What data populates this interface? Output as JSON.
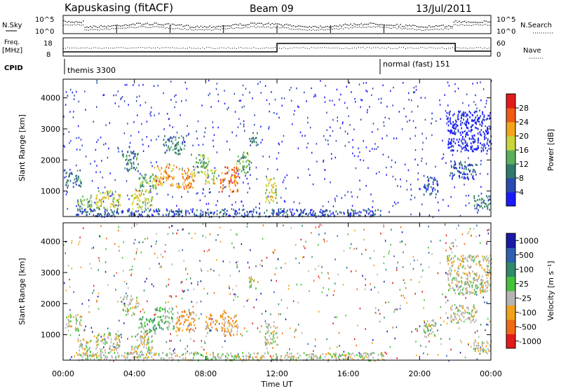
{
  "header": {
    "station": "Kapuskasing (fitACF)",
    "beam": "Beam 09",
    "date": "13/Jul/2011"
  },
  "top_panels": {
    "nsky_label": "N.Sky",
    "nsearch_label": "N.Search",
    "noise_ticks": [
      "10^5",
      "10^0"
    ],
    "freq_label_1": "Freq.",
    "freq_label_2": "[MHz]",
    "freq_ticks": [
      "18",
      "8"
    ],
    "nave_label": "Nave",
    "nave_ticks": [
      "60",
      "0"
    ],
    "cpid_label": "CPID",
    "cpid_segments": [
      {
        "label": "themis 3300",
        "start_hour": 0,
        "end_hour": 18
      },
      {
        "label": "normal (fast) 151",
        "start_hour": 18,
        "end_hour": 24
      }
    ]
  },
  "x_axis": {
    "label": "Time UT",
    "ticks": [
      "00:00",
      "04:00",
      "08:00",
      "12:00",
      "16:00",
      "20:00",
      "00:00"
    ]
  },
  "chart_data": [
    {
      "type": "heatmap",
      "name": "Power",
      "ylabel": "Slant Range [km]",
      "xlabel": "Time UT",
      "yticks": [
        1000,
        2000,
        3000,
        4000
      ],
      "ylim": [
        180,
        4600
      ],
      "xlim_hours": [
        0,
        24
      ],
      "colorbar": {
        "label": "Power [dB]",
        "ticks": [
          "4",
          "8",
          "12",
          "16",
          "20",
          "24",
          "28"
        ],
        "colors": [
          "#1a1aff",
          "#2a4bb0",
          "#2f7a6a",
          "#5bb05b",
          "#c8d63a",
          "#f2a51a",
          "#f05a14",
          "#e41a1a"
        ]
      },
      "regions": [
        {
          "t0": 0.1,
          "t1": 1.0,
          "r0": 1150,
          "r1": 1700,
          "level": 2
        },
        {
          "t0": 0.7,
          "t1": 1.6,
          "r0": 350,
          "r1": 900,
          "level": 3
        },
        {
          "t0": 1.8,
          "t1": 3.2,
          "r0": 450,
          "r1": 1050,
          "level": 4
        },
        {
          "t0": 3.3,
          "t1": 4.2,
          "r0": 1650,
          "r1": 2300,
          "level": 2
        },
        {
          "t0": 3.8,
          "t1": 5.0,
          "r0": 400,
          "r1": 1100,
          "level": 4
        },
        {
          "t0": 4.2,
          "t1": 5.2,
          "r0": 1100,
          "r1": 1600,
          "level": 3
        },
        {
          "t0": 5.1,
          "t1": 6.2,
          "r0": 1200,
          "r1": 1900,
          "level": 5
        },
        {
          "t0": 5.6,
          "t1": 6.8,
          "r0": 2200,
          "r1": 2800,
          "level": 2
        },
        {
          "t0": 6.3,
          "t1": 7.4,
          "r0": 1100,
          "r1": 1800,
          "level": 5
        },
        {
          "t0": 7.4,
          "t1": 8.2,
          "r0": 1600,
          "r1": 2200,
          "level": 3
        },
        {
          "t0": 7.9,
          "t1": 8.6,
          "r0": 1200,
          "r1": 1700,
          "level": 4
        },
        {
          "t0": 8.8,
          "t1": 9.8,
          "r0": 1000,
          "r1": 1800,
          "level": 6
        },
        {
          "t0": 9.7,
          "t1": 10.5,
          "r0": 1600,
          "r1": 2300,
          "level": 3
        },
        {
          "t0": 10.4,
          "t1": 10.9,
          "r0": 2500,
          "r1": 2900,
          "level": 2
        },
        {
          "t0": 11.3,
          "t1": 12.0,
          "r0": 650,
          "r1": 1450,
          "level": 4
        },
        {
          "t0": 0.5,
          "t1": 18.0,
          "r0": 200,
          "r1": 450,
          "level": 1
        },
        {
          "t0": 20.2,
          "t1": 21.0,
          "r0": 900,
          "r1": 1500,
          "level": 1
        },
        {
          "t0": 21.7,
          "t1": 23.2,
          "r0": 1400,
          "r1": 2000,
          "level": 1
        },
        {
          "t0": 23.0,
          "t1": 24.0,
          "r0": 400,
          "r1": 900,
          "level": 2
        },
        {
          "t0": 21.5,
          "t1": 24.0,
          "r0": 2300,
          "r1": 3600,
          "level": 0
        }
      ]
    },
    {
      "type": "heatmap",
      "name": "Velocity",
      "ylabel": "Slant Range [km]",
      "xlabel": "Time UT",
      "yticks": [
        1000,
        2000,
        3000,
        4000
      ],
      "ylim": [
        180,
        4600
      ],
      "xlim_hours": [
        0,
        24
      ],
      "colorbar": {
        "label": "Velocity [m s⁻¹]",
        "ticks": [
          "1000",
          "500",
          "100",
          "25",
          "-25",
          "-100",
          "-500",
          "-1000"
        ],
        "colors": [
          "#1a1aa8",
          "#2f5fb0",
          "#2f8a6a",
          "#46c23a",
          "#b4b4b4",
          "#f0a21a",
          "#f06a14",
          "#e41a1a"
        ]
      },
      "regions": [
        {
          "t0": 0.1,
          "t1": 1.0,
          "r0": 1150,
          "r1": 1700,
          "level": 4
        },
        {
          "t0": 0.7,
          "t1": 1.6,
          "r0": 350,
          "r1": 900,
          "level": 4
        },
        {
          "t0": 1.8,
          "t1": 3.2,
          "r0": 450,
          "r1": 1050,
          "level": 4
        },
        {
          "t0": 3.3,
          "t1": 4.2,
          "r0": 1650,
          "r1": 2300,
          "level": 4
        },
        {
          "t0": 3.8,
          "t1": 5.0,
          "r0": 400,
          "r1": 1100,
          "level": 4
        },
        {
          "t0": 4.2,
          "t1": 5.2,
          "r0": 1100,
          "r1": 1600,
          "level": 3
        },
        {
          "t0": 5.1,
          "t1": 6.2,
          "r0": 1200,
          "r1": 1900,
          "level": 3
        },
        {
          "t0": 6.3,
          "t1": 7.4,
          "r0": 1100,
          "r1": 1800,
          "level": 5
        },
        {
          "t0": 7.9,
          "t1": 8.6,
          "r0": 1200,
          "r1": 1700,
          "level": 5
        },
        {
          "t0": 8.8,
          "t1": 9.8,
          "r0": 1000,
          "r1": 1800,
          "level": 5
        },
        {
          "t0": 10.4,
          "t1": 10.9,
          "r0": 2500,
          "r1": 2900,
          "level": 4
        },
        {
          "t0": 11.3,
          "t1": 12.0,
          "r0": 650,
          "r1": 1450,
          "level": 4
        },
        {
          "t0": 0.5,
          "t1": 18.0,
          "r0": 200,
          "r1": 450,
          "level": 4
        },
        {
          "t0": 20.2,
          "t1": 21.0,
          "r0": 900,
          "r1": 1500,
          "level": 4
        },
        {
          "t0": 21.7,
          "t1": 23.2,
          "r0": 1400,
          "r1": 2000,
          "level": 4
        },
        {
          "t0": 23.0,
          "t1": 24.0,
          "r0": 400,
          "r1": 900,
          "level": 4
        },
        {
          "t0": 21.5,
          "t1": 24.0,
          "r0": 2300,
          "r1": 3600,
          "level": 4
        }
      ]
    }
  ]
}
